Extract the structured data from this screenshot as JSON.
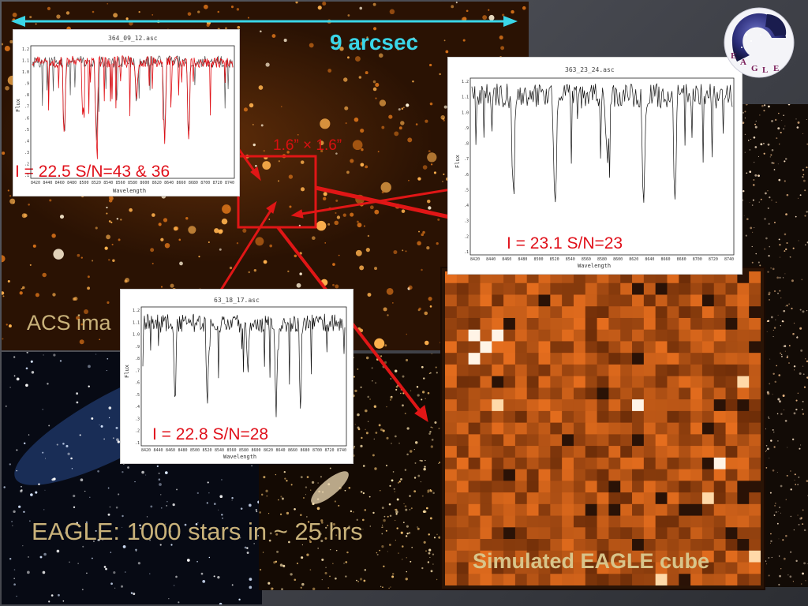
{
  "scale_bar": {
    "label": "9 arcsec"
  },
  "selection_box": {
    "label": "1.6” × 1.6”"
  },
  "captions": {
    "acs_image": "ACS ima",
    "eagle_summary": "EAGLE: 1000 stars in ~ 25 hrs",
    "simulated_cube": "Simulated EAGLE cube"
  },
  "logo": {
    "text": "EAGLE",
    "letters": [
      "E",
      "A",
      "G",
      "L",
      "E"
    ]
  },
  "spectra": [
    {
      "file": "364_09_12.asc",
      "annotation": "I = 22.5   S/N=43 & 36",
      "overlay_series": true
    },
    {
      "file": "363_23_24.asc",
      "annotation": "I = 23.1    S/N=23",
      "overlay_series": false
    },
    {
      "file": "63_18_17.asc",
      "annotation": "I = 22.8    S/N=28",
      "overlay_series": false
    }
  ],
  "spectrum_axes": {
    "xlabel": "Wavelength",
    "ylabel": "Flux",
    "x_ticks": [
      "8420",
      "8440",
      "8460",
      "8480",
      "8500",
      "8520",
      "8540",
      "8560",
      "8580",
      "8600",
      "8620",
      "8640",
      "8660",
      "8680",
      "8700",
      "8720",
      "8740"
    ],
    "y_ticks": [
      "1.2",
      "1.1",
      "1.0",
      ".9",
      ".8",
      ".7",
      ".6",
      ".5",
      ".4",
      ".3",
      ".2",
      ".1"
    ]
  },
  "colors": {
    "scale_bar": "#3ad6e8",
    "annotation_red": "#e0101a",
    "caption_gold": "#c9b27a",
    "background_slate": "#4a4c53"
  }
}
